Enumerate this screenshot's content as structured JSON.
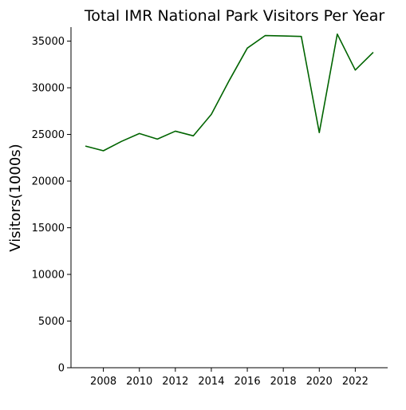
{
  "chart_data": {
    "type": "line",
    "title": "Total IMR National Park Visitors Per Year",
    "xlabel": "",
    "ylabel": "Visitors(1000s)",
    "xlim": [
      2006.2,
      2023.8
    ],
    "ylim": [
      0,
      36500
    ],
    "x_ticks": [
      2008,
      2010,
      2012,
      2014,
      2016,
      2018,
      2020,
      2022
    ],
    "y_ticks": [
      0,
      5000,
      10000,
      15000,
      20000,
      25000,
      30000,
      35000
    ],
    "grid": false,
    "line_color": "#006400",
    "series": [
      {
        "x": [
          2007,
          2008,
          2009,
          2010,
          2011,
          2012,
          2013,
          2014,
          2015,
          2016,
          2017,
          2018,
          2019,
          2020,
          2021,
          2022,
          2023
        ],
        "values": [
          23750,
          23250,
          24250,
          25100,
          24500,
          25350,
          24850,
          27150,
          30800,
          34250,
          35600,
          35550,
          35500,
          25200,
          35750,
          31900,
          33800
        ]
      }
    ]
  }
}
